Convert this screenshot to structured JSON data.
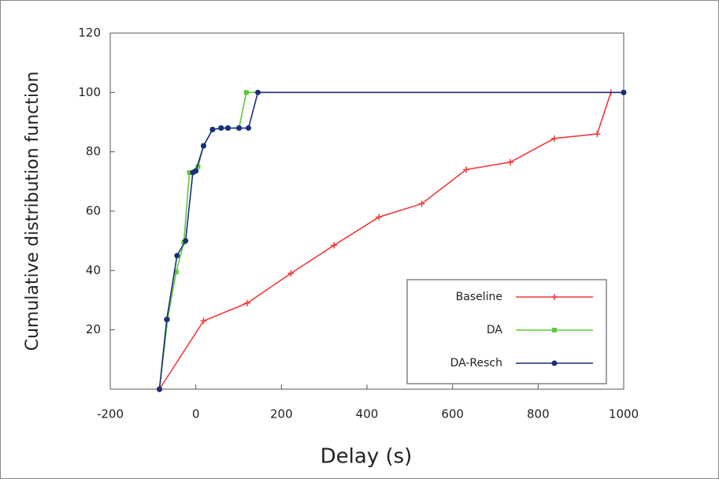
{
  "chart_data": {
    "type": "line",
    "ylabel": "Cumulative distribution function",
    "xlabel": "Delay (s)",
    "xlim": [
      -200,
      1000
    ],
    "xticks": [
      -200,
      0,
      200,
      400,
      600,
      800,
      1000
    ],
    "ylim": [
      0,
      120
    ],
    "yticks": [
      20,
      40,
      60,
      80,
      100,
      120
    ],
    "legend": "lower right",
    "series": [
      {
        "name": "Baseline",
        "color": "#f03a3a",
        "marker": "plus",
        "x": [
          -85,
          18,
          120,
          222,
          323,
          428,
          528,
          632,
          735,
          838,
          938,
          970
        ],
        "values": [
          0,
          23,
          29,
          39,
          48.5,
          58,
          62.5,
          74,
          76.5,
          84.5,
          86,
          100
        ]
      },
      {
        "name": "DA",
        "color": "#5cc83c",
        "marker": "square",
        "x": [
          -85,
          -66,
          -46,
          -28,
          -15,
          5,
          18,
          39,
          59,
          75,
          101,
          118,
          1000
        ],
        "values": [
          0,
          23.5,
          39.5,
          49.5,
          73,
          75,
          82,
          87.5,
          88,
          88,
          88,
          100,
          100
        ]
      },
      {
        "name": "DA-Resch",
        "color": "#1a2f7a",
        "marker": "circle",
        "x": [
          -85,
          -68,
          -44,
          -24,
          -7,
          0,
          18,
          39,
          59,
          75,
          101,
          123,
          145,
          1000
        ],
        "values": [
          0,
          23.5,
          45,
          50,
          73,
          73.5,
          82,
          87.5,
          88,
          88,
          88,
          88,
          100,
          100
        ]
      }
    ]
  }
}
